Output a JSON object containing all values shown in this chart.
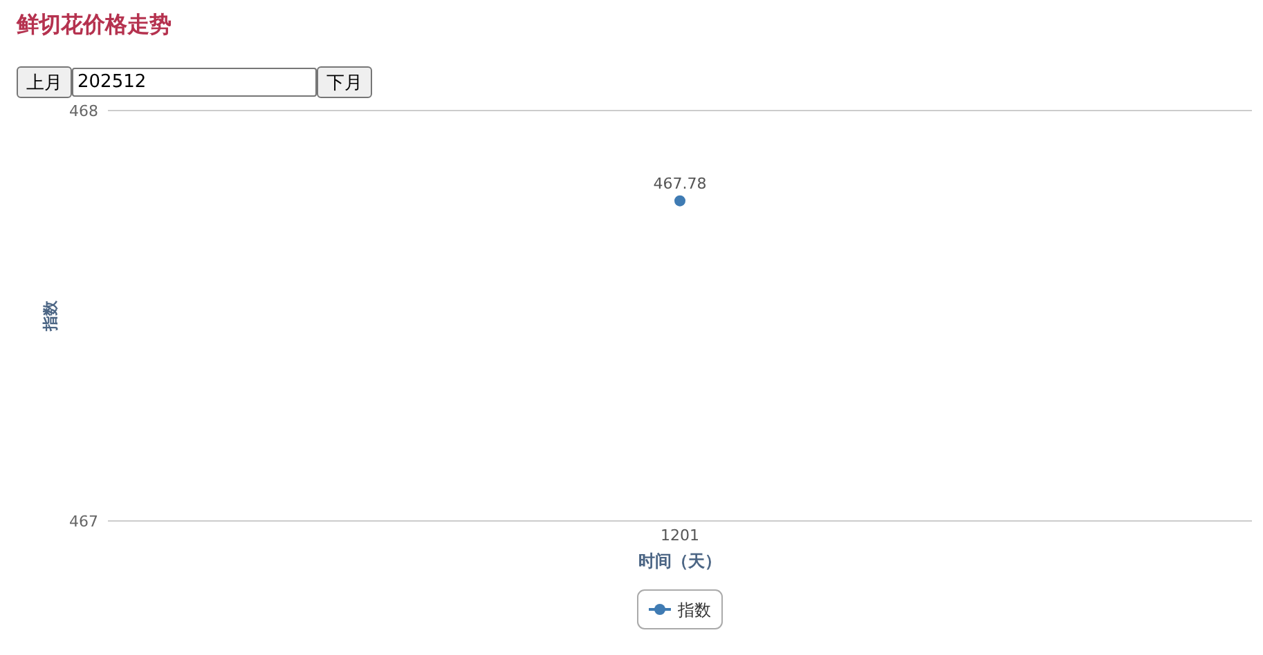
{
  "chart_data": {
    "type": "line",
    "title": "鲜切花价格走势",
    "annotations": [
      "上月",
      "202512",
      "下月"
    ],
    "xlabel": "时间（天）",
    "ylabel": "指数",
    "categories": [
      "1201"
    ],
    "series": [
      {
        "name": "指数",
        "color": "#3f7bb3",
        "values": [
          467.78
        ]
      }
    ],
    "ylim": [
      467,
      468
    ],
    "yticks": [
      467,
      468
    ],
    "grid": "y",
    "legend": "bottom",
    "marker": "circle",
    "data_labels": true
  }
}
